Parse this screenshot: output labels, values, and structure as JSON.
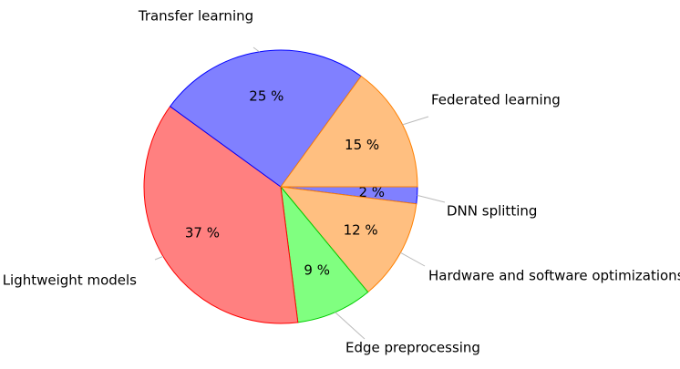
{
  "chart_data": {
    "type": "pie",
    "categories": [
      "DNN splitting",
      "Hardware and software optimizations",
      "Edge preprocessing",
      "Lightweight models",
      "Transfer learning",
      "Federated learning"
    ],
    "values": [
      2,
      12,
      9,
      37,
      25,
      15
    ],
    "value_labels": [
      "2 %",
      "12 %",
      "9 %",
      "37 %",
      "25 %",
      "15 %"
    ],
    "colors": [
      "#8080ff",
      "#ffbf80",
      "#80ff80",
      "#ff8080",
      "#8080ff",
      "#ffbf80"
    ],
    "edge_colors": [
      "#0000ff",
      "#ff8000",
      "#00cc00",
      "#ff0000",
      "#0000ff",
      "#ff8000"
    ]
  }
}
